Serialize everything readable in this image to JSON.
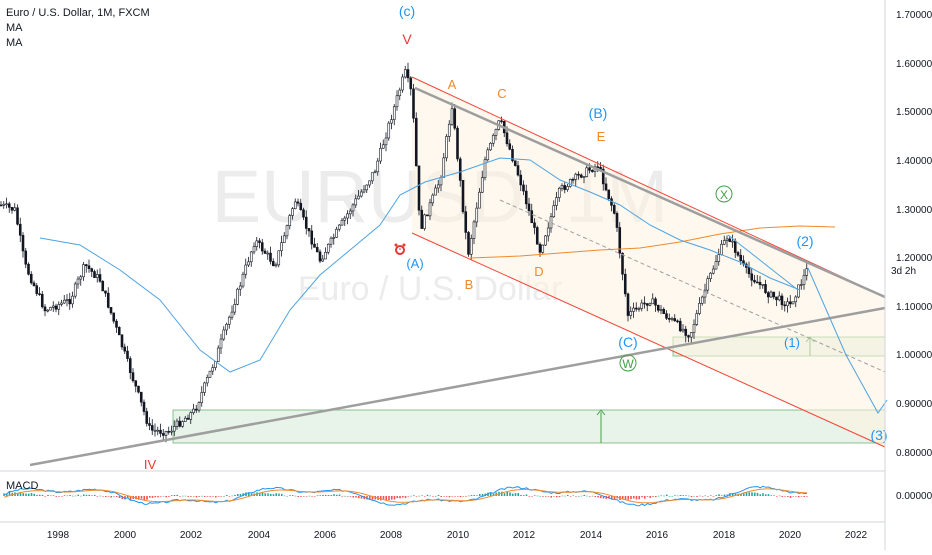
{
  "legend": {
    "symbol": "Euro / U.S. Dollar, 1M, FXCM",
    "indicator_1": "MA",
    "indicator_2": "MA"
  },
  "watermark": {
    "ticker": "EURUSD, 1M",
    "name": "Euro / U.S. Dollar"
  },
  "price_axis": {
    "labels": [
      "1.70000",
      "1.60000",
      "1.50000",
      "1.40000",
      "1.30000",
      "1.20000",
      "1.10000",
      "1.00000",
      "0.90000",
      "0.80000"
    ],
    "countdown": "3d 2h"
  },
  "time_axis": {
    "labels": [
      "1998",
      "2000",
      "2002",
      "2004",
      "2006",
      "2008",
      "2010",
      "2012",
      "2014",
      "2016",
      "2018",
      "2020",
      "2022"
    ]
  },
  "macd": {
    "label": "MACD",
    "axis_label": "0.00000"
  },
  "wave_labels": [
    {
      "text": "(c)",
      "color": "#2196f3"
    },
    {
      "text": "V",
      "color": "#e53935"
    },
    {
      "text": "A",
      "color": "#ef8a2b"
    },
    {
      "text": "C",
      "color": "#ef8a2b"
    },
    {
      "text": "(B)",
      "color": "#2196f3"
    },
    {
      "text": "E",
      "color": "#ef8a2b"
    },
    {
      "text": "X",
      "color": "#43a047"
    },
    {
      "text": "(2)",
      "color": "#2196f3"
    },
    {
      "text": "(A)",
      "color": "#2196f3"
    },
    {
      "text": "B",
      "color": "#ef8a2b"
    },
    {
      "text": "D",
      "color": "#ef8a2b"
    },
    {
      "text": "(C)",
      "color": "#2196f3"
    },
    {
      "text": "W",
      "color": "#43a047"
    },
    {
      "text": "(1)",
      "color": "#2196f3"
    },
    {
      "text": "(3)",
      "color": "#2196f3"
    },
    {
      "text": "IV",
      "color": "#e53935"
    }
  ],
  "colors": {
    "channel": "#f44336",
    "trendline": "#9e9e9e",
    "ma_blue": "#4fa3e0",
    "ma_orange": "#ef8a2b",
    "zone": "#43a047",
    "forecast": "#4fa3e0"
  }
}
